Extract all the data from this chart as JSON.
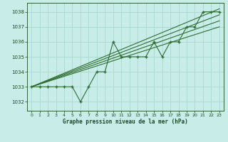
{
  "title": "Graphe pression niveau de la mer (hPa)",
  "background_color": "#c8ece8",
  "grid_color": "#a8d8d0",
  "line_color": "#2d6e2d",
  "text_color": "#1a4a1a",
  "xlim": [
    -0.5,
    23.5
  ],
  "ylim": [
    1031.4,
    1038.6
  ],
  "yticks": [
    1032,
    1033,
    1034,
    1035,
    1036,
    1037,
    1038
  ],
  "xticks": [
    0,
    1,
    2,
    3,
    4,
    5,
    6,
    7,
    8,
    9,
    10,
    11,
    12,
    13,
    14,
    15,
    16,
    17,
    18,
    19,
    20,
    21,
    22,
    23
  ],
  "data_x": [
    0,
    1,
    2,
    3,
    4,
    5,
    6,
    7,
    8,
    9,
    10,
    11,
    12,
    13,
    14,
    15,
    16,
    17,
    18,
    19,
    20,
    21,
    22,
    23
  ],
  "data_y": [
    1033,
    1033,
    1033,
    1033,
    1033,
    1033,
    1032,
    1033,
    1034,
    1034,
    1036,
    1035,
    1035,
    1035,
    1035,
    1036,
    1035,
    1036,
    1036,
    1037,
    1037,
    1038,
    1038,
    1038
  ],
  "trend1_x": [
    0,
    23
  ],
  "trend1_y": [
    1033.0,
    1038.2
  ],
  "trend2_x": [
    0,
    23
  ],
  "trend2_y": [
    1033.0,
    1037.8
  ],
  "trend3_x": [
    0,
    23
  ],
  "trend3_y": [
    1033.0,
    1037.4
  ],
  "trend4_x": [
    0,
    23
  ],
  "trend4_y": [
    1033.0,
    1037.0
  ]
}
